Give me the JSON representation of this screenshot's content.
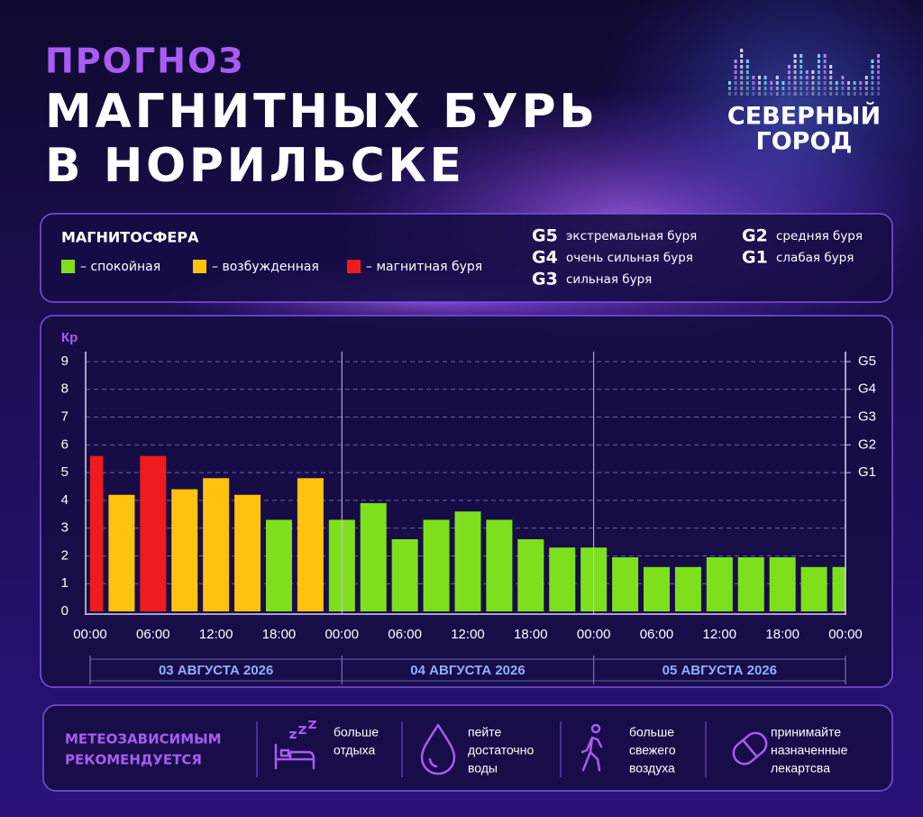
{
  "header": {
    "kicker": "ПРОГНОЗ",
    "title_lines": [
      "МАГНИТНЫХ БУРЬ",
      "В НОРИЛЬСКЕ"
    ]
  },
  "logo": {
    "lines": [
      "СЕВЕРНЫЙ",
      "ГОРОД"
    ]
  },
  "legend": {
    "title": "МАГНИТОСФЕРА",
    "items": [
      {
        "color": "#7ee01c",
        "label": "– спокойная"
      },
      {
        "color": "#ffc20e",
        "label": "– возбужденная"
      },
      {
        "color": "#ee1c1c",
        "label": "– магнитная буря"
      }
    ],
    "scale": [
      {
        "code": "G5",
        "label": "экстремальная буря"
      },
      {
        "code": "G4",
        "label": "очень сильная буря"
      },
      {
        "code": "G3",
        "label": "сильная буря"
      },
      {
        "code": "G2",
        "label": "средняя буря"
      },
      {
        "code": "G1",
        "label": "слабая буря"
      }
    ]
  },
  "chart_data": {
    "type": "bar",
    "y_label": "Кр",
    "categories": [
      "00:00",
      null,
      "06:00",
      null,
      "12:00",
      null,
      "18:00",
      null,
      "00:00",
      null,
      "06:00",
      null,
      "12:00",
      null,
      "18:00",
      null,
      "00:00",
      null,
      "06:00",
      null,
      "12:00",
      null,
      "18:00",
      null,
      "00:00"
    ],
    "values": [
      5.6,
      4.2,
      5.6,
      4.4,
      4.8,
      4.2,
      3.3,
      4.8,
      3.3,
      3.9,
      2.6,
      3.3,
      3.6,
      3.3,
      2.6,
      2.3,
      2.3,
      1.95,
      1.6,
      1.6,
      1.95,
      1.95,
      1.95,
      1.6,
      1.6
    ],
    "colors": [
      "#ee1c1c",
      "#ffc20e",
      "#ee1c1c",
      "#ffc20e",
      "#ffc20e",
      "#ffc20e",
      "#7ee01c",
      "#ffc20e",
      "#7ee01c",
      "#7ee01c",
      "#7ee01c",
      "#7ee01c",
      "#7ee01c",
      "#7ee01c",
      "#7ee01c",
      "#7ee01c",
      "#7ee01c",
      "#7ee01c",
      "#7ee01c",
      "#7ee01c",
      "#7ee01c",
      "#7ee01c",
      "#7ee01c",
      "#7ee01c",
      "#7ee01c"
    ],
    "ylim": [
      0,
      9
    ],
    "yticks": [
      0,
      1,
      2,
      3,
      4,
      5,
      6,
      7,
      8,
      9
    ],
    "y2lim": [
      0,
      9
    ],
    "y2ticks": [
      {
        "value": 5,
        "label": "G1"
      },
      {
        "value": 6,
        "label": "G2"
      },
      {
        "value": 7,
        "label": "G3"
      },
      {
        "value": 8,
        "label": "G4"
      },
      {
        "value": 9,
        "label": "G5"
      }
    ],
    "days": [
      "03 АВГУСТА 2026",
      "04 АВГУСТА 2026",
      "05 АВГУСТА 2026"
    ],
    "grid": true
  },
  "advice": {
    "title_lines": [
      "МЕТЕОЗАВИСИМЫМ",
      "РЕКОМЕНДУЕТСЯ"
    ],
    "items": [
      [
        "больше",
        "отдыха"
      ],
      [
        "пейте",
        "достаточно",
        "воды"
      ],
      [
        "больше",
        "свежего",
        "воздуха"
      ],
      [
        "принимайте",
        "назначенные",
        "лекартсва"
      ]
    ]
  }
}
